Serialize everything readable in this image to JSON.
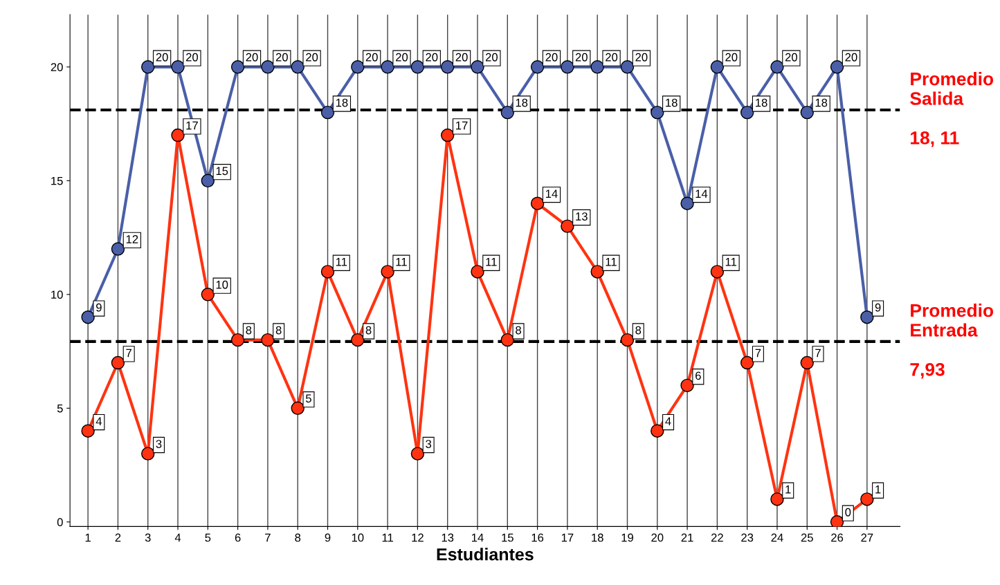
{
  "chart_data": {
    "type": "line",
    "xlabel": "Estudiantes",
    "categories": [
      "1",
      "2",
      "3",
      "4",
      "5",
      "6",
      "7",
      "8",
      "9",
      "10",
      "11",
      "12",
      "13",
      "14",
      "15",
      "16",
      "17",
      "18",
      "19",
      "20",
      "21",
      "22",
      "23",
      "24",
      "25",
      "26",
      "27"
    ],
    "series": [
      {
        "color": "#4a5fa8",
        "values": [
          9,
          12,
          20,
          20,
          15,
          20,
          20,
          20,
          18,
          20,
          20,
          20,
          20,
          20,
          18,
          20,
          20,
          20,
          20,
          18,
          14,
          20,
          18,
          20,
          18,
          20,
          9
        ]
      },
      {
        "color": "#ff3311",
        "values": [
          4,
          7,
          3,
          17,
          10,
          8,
          8,
          5,
          11,
          8,
          11,
          3,
          17,
          11,
          8,
          14,
          13,
          11,
          8,
          4,
          6,
          11,
          7,
          1,
          7,
          0,
          1
        ]
      }
    ],
    "ylim": [
      -0.2,
      22.3
    ],
    "yticks": [
      0,
      5,
      10,
      15,
      20
    ],
    "ref_lines": [
      {
        "axis": "y",
        "value": 18.11,
        "label": "Promedio\nSalida\n\n18, 11",
        "color": "#000000",
        "line_style": "dashed"
      },
      {
        "axis": "y",
        "value": 7.93,
        "label": "Promedio\nEntrada\n\n7,93",
        "color": "#000000",
        "line_style": "dashed"
      }
    ],
    "data_labels": true,
    "grid": "x",
    "marker": "circle",
    "line_style": "solid"
  }
}
